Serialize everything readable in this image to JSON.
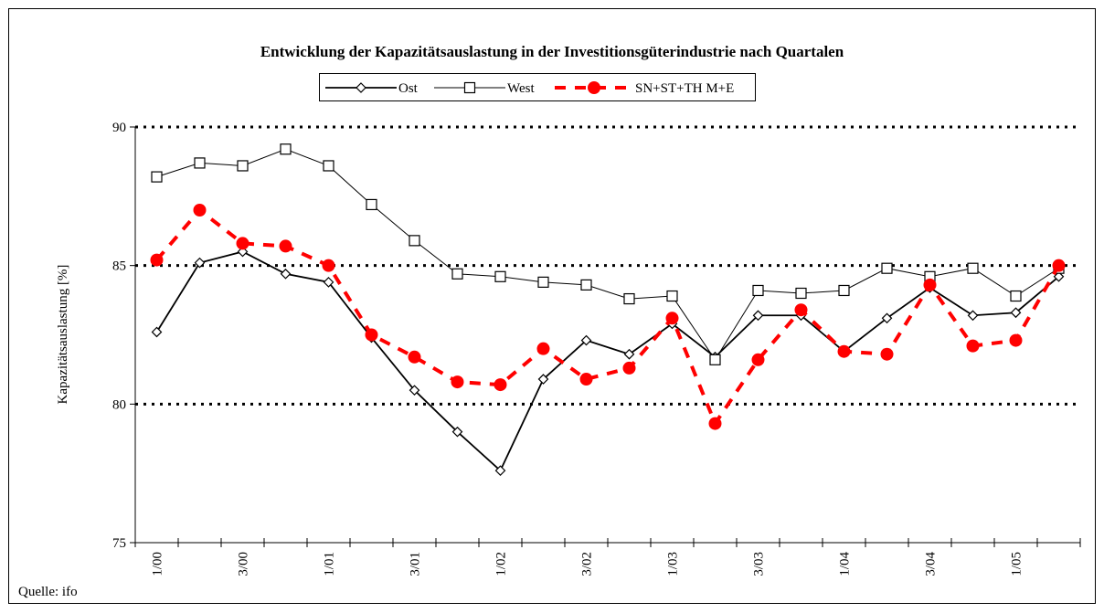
{
  "chart_data": {
    "type": "line",
    "title": "Entwicklung der Kapazitätsauslastung in der Investitionsgüterindustrie nach Quartalen",
    "y_label": "Kapazitätsauslastung [%]",
    "source": "Quelle: ifo",
    "categories": [
      "1/00",
      null,
      "3/00",
      null,
      "1/01",
      null,
      "3/01",
      null,
      "1/02",
      null,
      "3/02",
      null,
      "1/03",
      null,
      "3/03",
      null,
      "1/04",
      null,
      "3/04",
      null,
      "1/05",
      null
    ],
    "ylim": [
      75,
      90
    ],
    "yticks": [
      75,
      80,
      85,
      90
    ],
    "grid": true,
    "series": [
      {
        "name": "Ost",
        "color": "#000000",
        "marker": "diamond",
        "dash": "solid",
        "values": [
          82.6,
          85.1,
          85.5,
          84.7,
          84.4,
          82.4,
          80.5,
          79.0,
          77.6,
          80.9,
          82.3,
          81.8,
          82.9,
          81.7,
          83.2,
          83.2,
          81.9,
          83.1,
          84.2,
          83.2,
          83.3,
          84.6
        ]
      },
      {
        "name": "West",
        "color": "#000000",
        "marker": "square",
        "dash": "solid",
        "values": [
          88.2,
          88.7,
          88.6,
          89.2,
          88.6,
          87.2,
          85.9,
          84.7,
          84.6,
          84.4,
          84.3,
          83.8,
          83.9,
          81.6,
          84.1,
          84.0,
          84.1,
          84.9,
          84.6,
          84.9,
          83.9,
          84.9
        ]
      },
      {
        "name": "SN+ST+TH M+E",
        "color": "#ff0000",
        "marker": "circle",
        "dash": "dashed",
        "values": [
          85.2,
          87.0,
          85.8,
          85.7,
          85.0,
          82.5,
          81.7,
          80.8,
          80.7,
          82.0,
          80.9,
          81.3,
          83.1,
          79.3,
          81.6,
          83.4,
          81.9,
          81.8,
          84.3,
          82.1,
          82.3,
          85.0
        ]
      }
    ]
  }
}
